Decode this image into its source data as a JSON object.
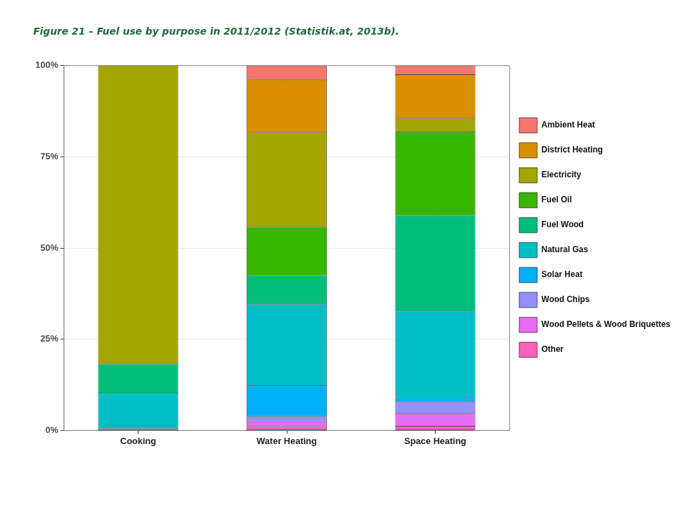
{
  "chart_data": {
    "type": "bar",
    "title": "Figure 21 – Fuel use by purpose in 2011/2012 (Statistik.at, 2013b).",
    "categories": [
      "Cooking",
      "Water Heating",
      "Space Heating"
    ],
    "stacked": true,
    "series": [
      {
        "name": "Other",
        "color": "#ff62bc",
        "values": [
          0.5,
          1.1,
          1.2
        ]
      },
      {
        "name": "Wood Pellets & Wood Briquettes",
        "color": "#e76bf3",
        "values": [
          0,
          1.4,
          3.4
        ]
      },
      {
        "name": "Wood Chips",
        "color": "#9590ff",
        "values": [
          0,
          1.3,
          3.3
        ]
      },
      {
        "name": "Solar Heat",
        "color": "#00b0f6",
        "values": [
          0,
          8.5,
          1.2
        ]
      },
      {
        "name": "Natural Gas",
        "color": "#00bfc4",
        "values": [
          9.7,
          22.3,
          23.6
        ]
      },
      {
        "name": "Fuel Wood",
        "color": "#00bf7d",
        "values": [
          8.0,
          7.9,
          26.2
        ]
      },
      {
        "name": "Fuel Oil",
        "color": "#39b600",
        "values": [
          0,
          13.3,
          22.9
        ]
      },
      {
        "name": "Electricity",
        "color": "#a3a500",
        "values": [
          82.0,
          25.9,
          3.7
        ]
      },
      {
        "name": "District Heating",
        "color": "#d89000",
        "values": [
          0,
          14.5,
          12.0
        ]
      },
      {
        "name": "Ambient Heat",
        "color": "#f8766d",
        "values": [
          0,
          3.8,
          2.5
        ]
      }
    ],
    "ylim": [
      0,
      100
    ],
    "yticks": [
      {
        "value": 0,
        "label": "0%"
      },
      {
        "value": 25,
        "label": "25%"
      },
      {
        "value": 50,
        "label": "50%"
      },
      {
        "value": 75,
        "label": "75%"
      },
      {
        "value": 100,
        "label": "100%"
      }
    ],
    "grid": true,
    "legend": "right"
  }
}
